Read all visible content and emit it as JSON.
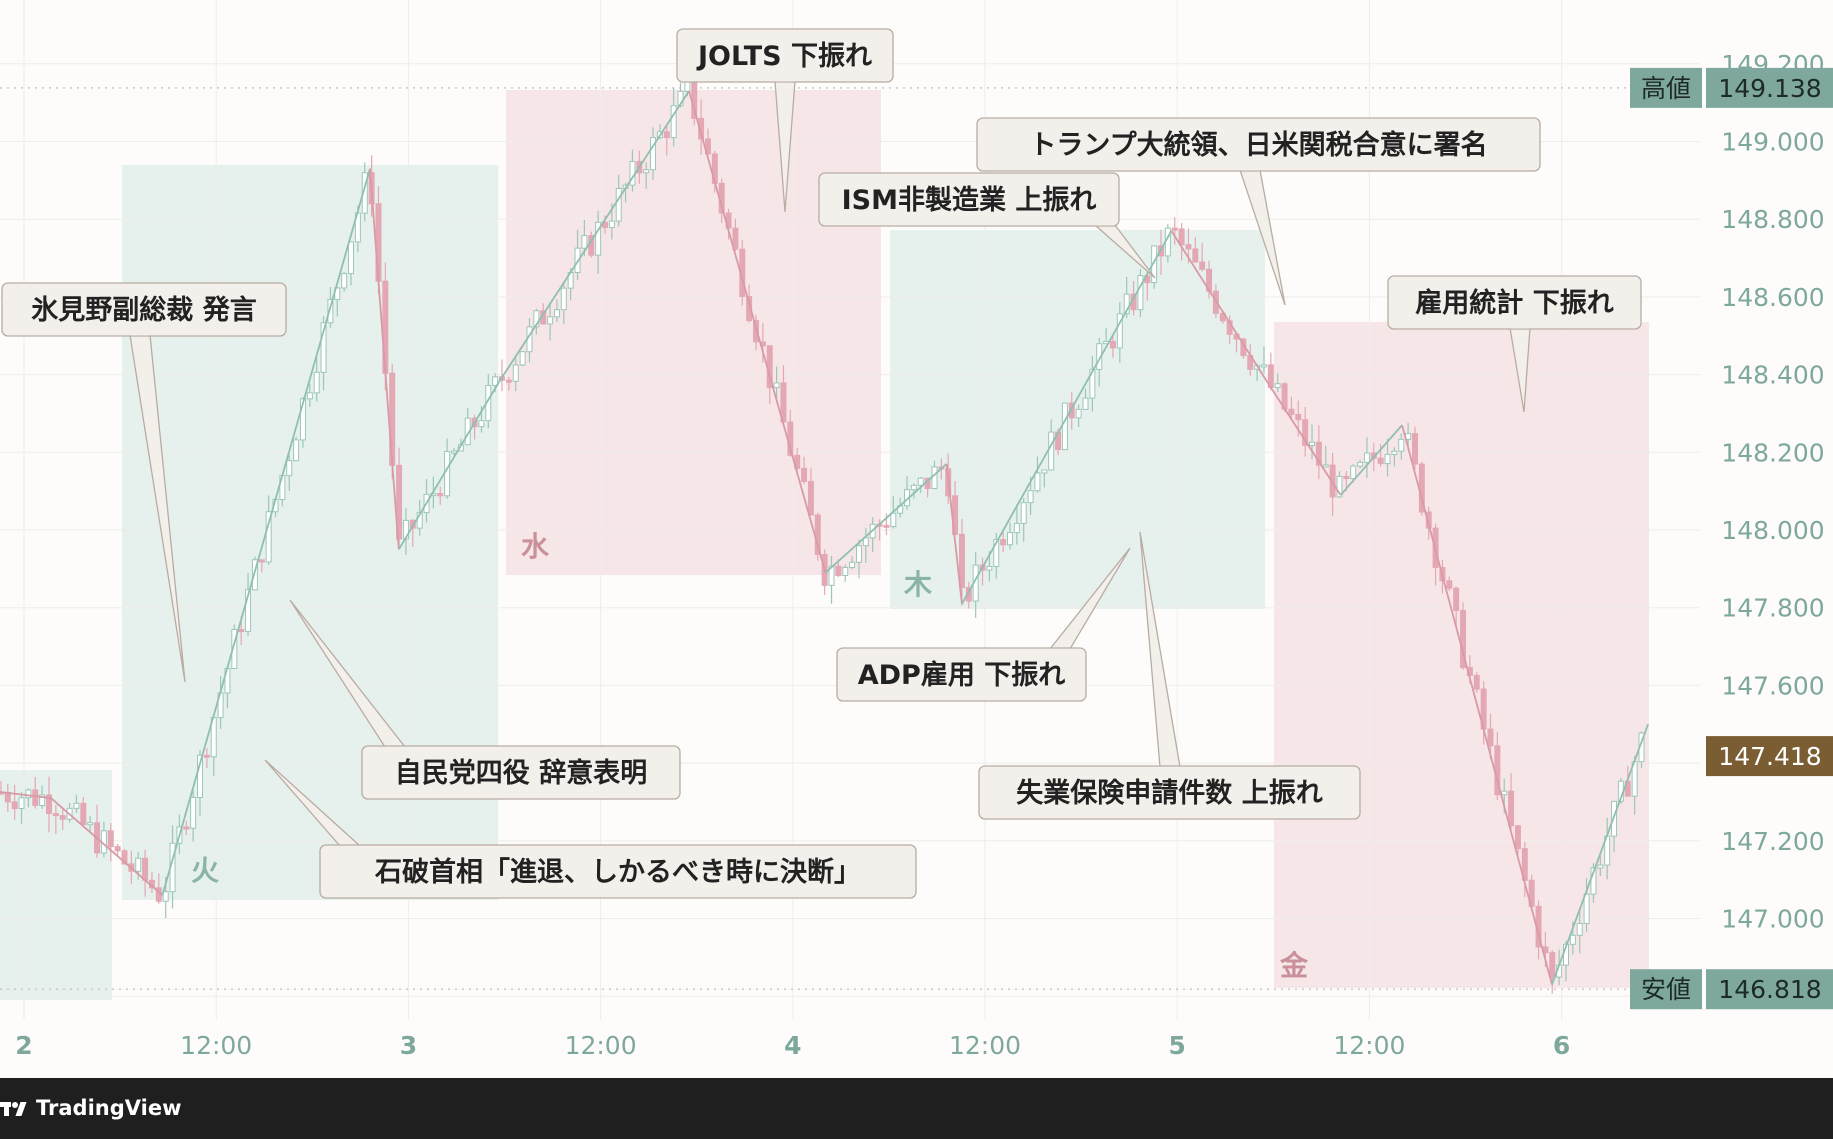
{
  "chart_data": {
    "type": "candlestick",
    "title": "",
    "ylim": [
      146.72,
      149.22
    ],
    "y_ticks": [
      "147.000",
      "147.200",
      "147.600",
      "147.800",
      "148.000",
      "148.200",
      "148.400",
      "148.600",
      "148.800",
      "149.000",
      "149.200"
    ],
    "x_ticks": [
      "2",
      "12:00",
      "3",
      "12:00",
      "4",
      "12:00",
      "5",
      "12:00",
      "6"
    ],
    "high": {
      "label": "高値",
      "value": "149.138"
    },
    "low": {
      "label": "安値",
      "value": "146.818"
    },
    "last": {
      "value": "147.418"
    },
    "day_labels": [
      "火",
      "水",
      "木",
      "金"
    ],
    "zigzag": [
      {
        "t": -0.2,
        "p": 147.33
      },
      {
        "t": 0.14,
        "p": 147.31
      },
      {
        "t": 0.72,
        "p": 147.06
      },
      {
        "t": 1.8,
        "p": 148.93
      },
      {
        "t": 1.95,
        "p": 147.95
      },
      {
        "t": 2.47,
        "p": 148.38
      },
      {
        "t": 3.46,
        "p": 149.13
      },
      {
        "t": 4.17,
        "p": 147.89
      },
      {
        "t": 4.8,
        "p": 148.17
      },
      {
        "t": 4.88,
        "p": 147.81
      },
      {
        "t": 5.97,
        "p": 148.77
      },
      {
        "t": 6.47,
        "p": 148.38
      },
      {
        "t": 6.85,
        "p": 148.09
      },
      {
        "t": 7.17,
        "p": 148.27
      },
      {
        "t": 7.95,
        "p": 146.83
      },
      {
        "t": 8.45,
        "p": 147.5
      }
    ],
    "segment_colors": {
      "up": "#8fbfb0",
      "down": "#d89aa6"
    },
    "candle_colors": {
      "up": "#9cc6b9",
      "down": "#e4a8b4"
    },
    "annotations": [
      {
        "text": "氷見野副総裁 発言"
      },
      {
        "text": "自民党四役 辞意表明"
      },
      {
        "text": "石破首相「進退、しかるべき時に決断」"
      },
      {
        "text": "JOLTS 下振れ"
      },
      {
        "text": "ISM非製造業 上振れ"
      },
      {
        "text": "トランプ大統領、日米関税合意に署名"
      },
      {
        "text": "ADP雇用 下振れ"
      },
      {
        "text": "失業保険申請件数 上振れ"
      },
      {
        "text": "雇用統計 下振れ"
      }
    ]
  },
  "colors": {
    "background": "#fdfcfa",
    "band_green": "#e6f0ec",
    "band_red": "#f7e6e8",
    "axis_text": "#7fa89c",
    "price_tag": "#7ea89d",
    "last_tag": "#7a5d33",
    "callout_fill": "#f3efeb",
    "callout_stroke": "#b8aca3"
  },
  "footer": {
    "brand": "TradingView"
  }
}
